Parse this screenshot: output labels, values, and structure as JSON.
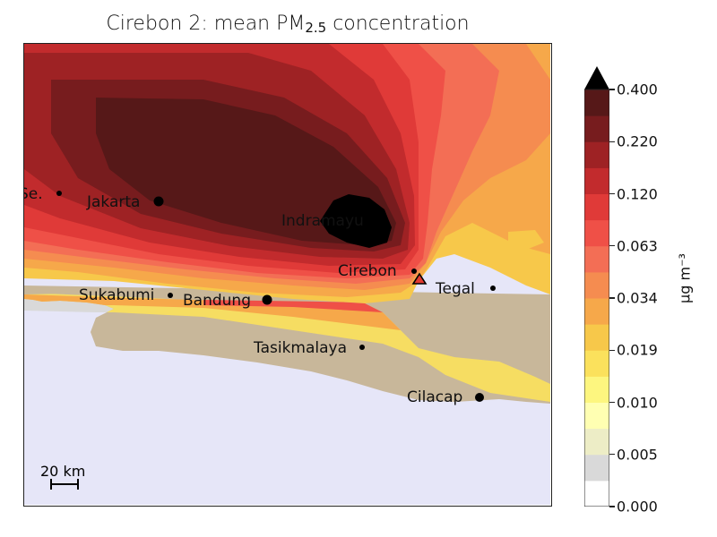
{
  "title": {
    "prefix": "Cirebon 2: mean PM",
    "subscript": "2.5",
    "suffix": " concentration"
  },
  "map": {
    "source_marker": "triangle",
    "cities": [
      {
        "name": "Se.",
        "dot": "small"
      },
      {
        "name": "Jakarta",
        "dot": "large"
      },
      {
        "name": "Indramayu",
        "dot": "none"
      },
      {
        "name": "Cirebon",
        "dot": "small"
      },
      {
        "name": "Tegal",
        "dot": "small"
      },
      {
        "name": "Sukabumi",
        "dot": "small"
      },
      {
        "name": "Bandung",
        "dot": "large"
      },
      {
        "name": "Tasikmalaya",
        "dot": "small"
      },
      {
        "name": "Cilacap",
        "dot": "large"
      }
    ],
    "scale_bar": "20 km",
    "colors": {
      "sea": "#e6e6f8",
      "land": "#c8b79a",
      "peak": "#000000"
    }
  },
  "colorbar": {
    "unit": "μg m⁻³",
    "extend": "max",
    "ticks": [
      "0.000",
      "0.005",
      "0.010",
      "0.019",
      "0.034",
      "0.063",
      "0.120",
      "0.220",
      "0.400"
    ],
    "colors": [
      "#ffffff",
      "#d9d9d9",
      "#ededc6",
      "#ffffb2",
      "#fdf67f",
      "#fbe15c",
      "#f7c84a",
      "#f6a84a",
      "#f58c50",
      "#f36e55",
      "#ef5047",
      "#e03a38",
      "#c22b2d",
      "#9e2224",
      "#771c1e",
      "#561818"
    ]
  }
}
